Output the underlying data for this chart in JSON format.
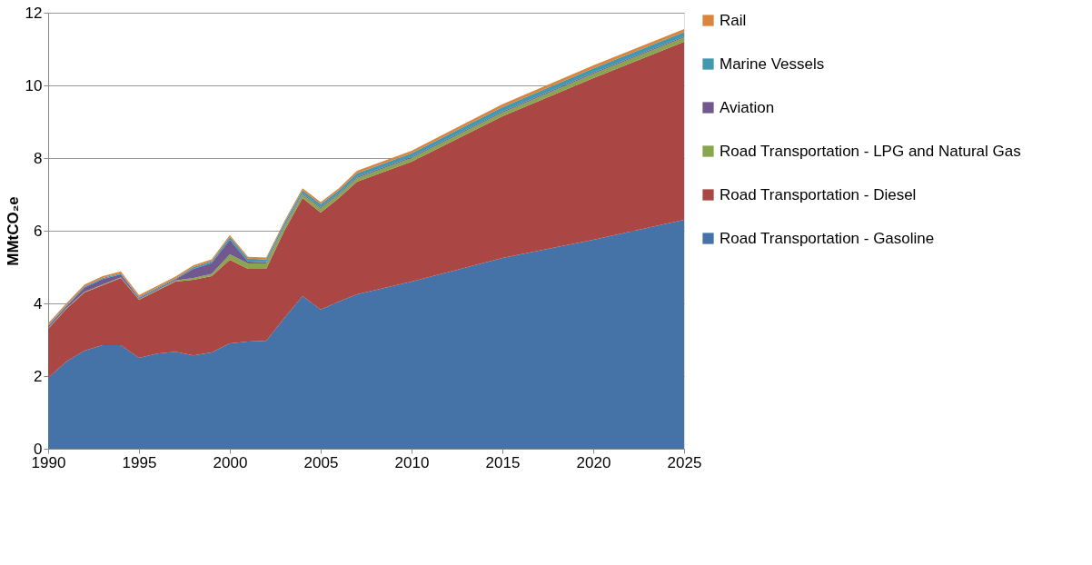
{
  "chart_data": {
    "type": "area",
    "stacked": true,
    "ylabel": "MMtCO₂e",
    "x": [
      1990,
      1991,
      1992,
      1993,
      1994,
      1995,
      1996,
      1997,
      1998,
      1999,
      2000,
      2001,
      2002,
      2003,
      2004,
      2005,
      2006,
      2007,
      2010,
      2015,
      2020,
      2025
    ],
    "xlim": [
      1990,
      2025
    ],
    "xticks": [
      1990,
      1995,
      2000,
      2005,
      2010,
      2015,
      2020,
      2025
    ],
    "ylim": [
      0,
      12
    ],
    "yticks": [
      0,
      2,
      4,
      6,
      8,
      10,
      12
    ],
    "grid": "y",
    "legend": "right",
    "series": [
      {
        "name": "Road Transportation - Gasoline",
        "color": "#4572a7",
        "values": [
          1.95,
          2.4,
          2.7,
          2.85,
          2.85,
          2.5,
          2.62,
          2.67,
          2.57,
          2.65,
          2.9,
          2.95,
          2.97,
          3.6,
          4.2,
          3.83,
          4.05,
          4.25,
          4.6,
          5.25,
          5.75,
          6.3
        ]
      },
      {
        "name": "Road Transportation - Diesel",
        "color": "#aa4643",
        "values": [
          1.35,
          1.45,
          1.6,
          1.65,
          1.85,
          1.6,
          1.73,
          1.93,
          2.08,
          2.1,
          2.3,
          2.0,
          1.98,
          2.4,
          2.7,
          2.67,
          2.85,
          3.1,
          3.3,
          3.9,
          4.45,
          4.9
        ]
      },
      {
        "name": "Road Transportation - LPG and Natural Gas",
        "color": "#89a54e",
        "values": [
          0.02,
          0.02,
          0.02,
          0.02,
          0.02,
          0.02,
          0.02,
          0.03,
          0.05,
          0.06,
          0.15,
          0.15,
          0.15,
          0.1,
          0.1,
          0.12,
          0.1,
          0.1,
          0.1,
          0.1,
          0.12,
          0.12
        ]
      },
      {
        "name": "Aviation",
        "color": "#71588f",
        "values": [
          0.05,
          0.05,
          0.12,
          0.15,
          0.08,
          0.03,
          0.03,
          0.03,
          0.25,
          0.3,
          0.4,
          0.05,
          0.03,
          0.03,
          0.03,
          0.03,
          0.03,
          0.03,
          0.03,
          0.03,
          0.03,
          0.03
        ]
      },
      {
        "name": "Marine Vessels",
        "color": "#4198af",
        "values": [
          0.03,
          0.03,
          0.03,
          0.03,
          0.03,
          0.03,
          0.03,
          0.03,
          0.05,
          0.05,
          0.08,
          0.08,
          0.08,
          0.08,
          0.08,
          0.08,
          0.08,
          0.1,
          0.1,
          0.12,
          0.12,
          0.12
        ]
      },
      {
        "name": "Rail",
        "color": "#db843d",
        "values": [
          0.05,
          0.05,
          0.05,
          0.05,
          0.05,
          0.05,
          0.05,
          0.05,
          0.05,
          0.05,
          0.05,
          0.05,
          0.05,
          0.05,
          0.06,
          0.06,
          0.06,
          0.07,
          0.07,
          0.08,
          0.08,
          0.08
        ]
      }
    ]
  }
}
